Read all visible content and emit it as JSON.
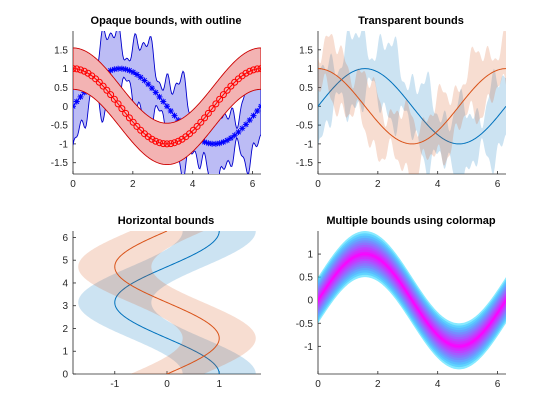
{
  "chart_data": [
    {
      "type": "line",
      "title": "Opaque bounds, with outline",
      "xlim": [
        0,
        6.2832
      ],
      "ylim": [
        -1.8,
        2.0
      ],
      "xticks": [
        "0",
        "2",
        "4",
        "6"
      ],
      "yticks": [
        "-1.5",
        "-1",
        "-0.5",
        "0",
        "0.5",
        "1",
        "1.5"
      ],
      "series": [
        {
          "function": "sin",
          "color": "#0000ff",
          "marker": "asterisk",
          "band": "noisy-wide",
          "band_fill": "#bcbcf5",
          "band_edge": "#0000cc"
        },
        {
          "function": "cos",
          "color": "#ff0000",
          "marker": "circle",
          "band_halfwidth": 0.5,
          "band_fill": "#f3b3b3",
          "band_edge": "#cc0000"
        }
      ]
    },
    {
      "type": "line",
      "title": "Transparent bounds",
      "xlim": [
        0,
        6.2832
      ],
      "ylim": [
        -1.8,
        2.0
      ],
      "xticks": [
        "0",
        "2",
        "4",
        "6"
      ],
      "yticks": [
        "-1.5",
        "-1",
        "-0.5",
        "0",
        "0.5",
        "1",
        "1.5"
      ],
      "series": [
        {
          "function": "sin",
          "color": "#0072bd",
          "band": "noisy-wide",
          "band_fill": "#0072bd"
        },
        {
          "function": "cos",
          "color": "#d95319",
          "band": "noisy",
          "band_fill": "#d95319"
        }
      ]
    },
    {
      "type": "line",
      "title": "Horizontal bounds",
      "xlim": [
        -1.8,
        1.8
      ],
      "ylim": [
        0,
        6.2832
      ],
      "xticks": [
        "-1",
        "0",
        "1"
      ],
      "yticks": [
        "0",
        "1",
        "2",
        "3",
        "4",
        "5",
        "6"
      ],
      "orientation": "horizontal",
      "series": [
        {
          "function": "cos",
          "color": "#0072bd",
          "band_halfwidth": 0.7,
          "band_fill": "#0072bd"
        },
        {
          "function": "sin",
          "color": "#d95319",
          "band_halfwidth": 0.7,
          "band_fill": "#d95319"
        }
      ]
    },
    {
      "type": "area",
      "title": "Multiple bounds using colormap",
      "xlim": [
        0,
        6.2832
      ],
      "ylim": [
        -1.6,
        1.5
      ],
      "xticks": [
        "0",
        "2",
        "4",
        "6"
      ],
      "yticks": [
        "-1",
        "-0.5",
        "0",
        "0.5",
        "1"
      ],
      "series": [
        {
          "function": "sin",
          "color": "#ff00ff",
          "band_halfwidths": [
            0.5,
            0.45,
            0.4,
            0.35,
            0.3,
            0.25,
            0.2,
            0.15,
            0.1,
            0.05
          ],
          "colormap": "cool"
        }
      ]
    }
  ]
}
